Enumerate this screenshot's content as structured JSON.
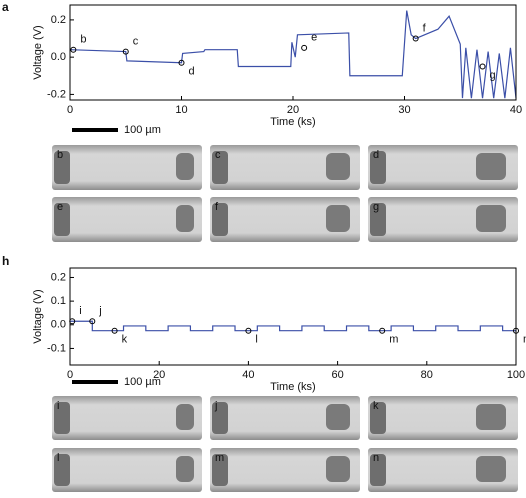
{
  "chart_data": [
    {
      "type": "line",
      "xlabel": "Time (ks)",
      "ylabel": "Voltage (V)",
      "x": [
        0,
        5,
        5.1,
        10,
        10.1,
        12,
        12.1,
        15,
        15.1,
        19.8,
        19.9,
        20.2,
        20.4,
        25,
        25.1,
        29.8,
        30.2,
        30.6,
        31,
        33,
        34,
        35,
        35.2,
        35.5,
        36,
        36.5,
        37,
        37.5,
        38,
        38.5,
        39,
        39.5,
        40
      ],
      "series": [
        {
          "color": "#3b4fa8",
          "values": [
            0.04,
            0.03,
            -0.02,
            -0.03,
            0.02,
            0.03,
            0.04,
            0.04,
            -0.05,
            -0.05,
            0.08,
            0.0,
            0.12,
            0.13,
            -0.1,
            -0.1,
            0.25,
            0.12,
            0.1,
            0.15,
            0.22,
            0.07,
            -0.22,
            0.05,
            -0.22,
            0.04,
            -0.22,
            0.03,
            -0.22,
            0.02,
            -0.22,
            0.05,
            -0.22
          ]
        }
      ],
      "xlim": [
        0,
        40
      ],
      "xticks": [
        0,
        10,
        20,
        30,
        40
      ],
      "ylim": [
        -0.23,
        0.28
      ],
      "yticks": [
        -0.2,
        {
          "value": 0,
          "label": "0.0"
        },
        0.2
      ],
      "annotations": [
        {
          "label": "b",
          "x": 0.3,
          "y": 0.04
        },
        {
          "label": "c",
          "x": 5,
          "y": 0.03
        },
        {
          "label": "d",
          "x": 10,
          "y": -0.03
        },
        {
          "label": "e",
          "x": 21,
          "y": 0.05
        },
        {
          "label": "f",
          "x": 31,
          "y": 0.1
        },
        {
          "label": "g",
          "x": 37,
          "y": -0.05
        }
      ]
    },
    {
      "type": "line",
      "xlabel": "Time (ks)",
      "ylabel": "Voltage (V)",
      "x": [
        0,
        5,
        5,
        12,
        12,
        17,
        17,
        22,
        22,
        27,
        27,
        32,
        32,
        37,
        37,
        42,
        42,
        47,
        47,
        52,
        52,
        57,
        57,
        62,
        62,
        67,
        67,
        72,
        72,
        77,
        77,
        82,
        82,
        87,
        87,
        92,
        92,
        97,
        97,
        100
      ],
      "series": [
        {
          "color": "#3b4fa8",
          "values": [
            0.015,
            0.015,
            -0.025,
            -0.025,
            -0.005,
            -0.005,
            -0.025,
            -0.025,
            -0.005,
            -0.005,
            -0.025,
            -0.025,
            -0.005,
            -0.005,
            -0.025,
            -0.025,
            -0.005,
            -0.005,
            -0.025,
            -0.025,
            -0.005,
            -0.005,
            -0.025,
            -0.025,
            -0.005,
            -0.005,
            -0.025,
            -0.025,
            -0.005,
            -0.005,
            -0.025,
            -0.025,
            -0.005,
            -0.005,
            -0.025,
            -0.025,
            -0.005,
            -0.005,
            -0.025,
            -0.025
          ]
        }
      ],
      "xlim": [
        0,
        100
      ],
      "xticks": [
        0,
        20,
        40,
        60,
        80,
        100
      ],
      "ylim": [
        -0.17,
        0.24
      ],
      "yticks": [
        -0.1,
        {
          "value": 0,
          "label": "0.0"
        },
        0.1,
        0.2
      ],
      "annotations": [
        {
          "label": "i",
          "x": 0.5,
          "y": 0.015
        },
        {
          "label": "j",
          "x": 5,
          "y": 0.015
        },
        {
          "label": "k",
          "x": 10,
          "y": -0.025
        },
        {
          "label": "l",
          "x": 40,
          "y": -0.025
        },
        {
          "label": "m",
          "x": 70,
          "y": -0.025
        },
        {
          "label": "n",
          "x": 100,
          "y": -0.025
        }
      ]
    }
  ],
  "panels": [
    {
      "label": "a",
      "scale_bar": "100 µm",
      "images": [
        "b",
        "c",
        "d",
        "e",
        "f",
        "g"
      ]
    },
    {
      "label": "h",
      "scale_bar": "100 µm",
      "images": [
        "i",
        "j",
        "k",
        "l",
        "m",
        "n"
      ]
    }
  ]
}
